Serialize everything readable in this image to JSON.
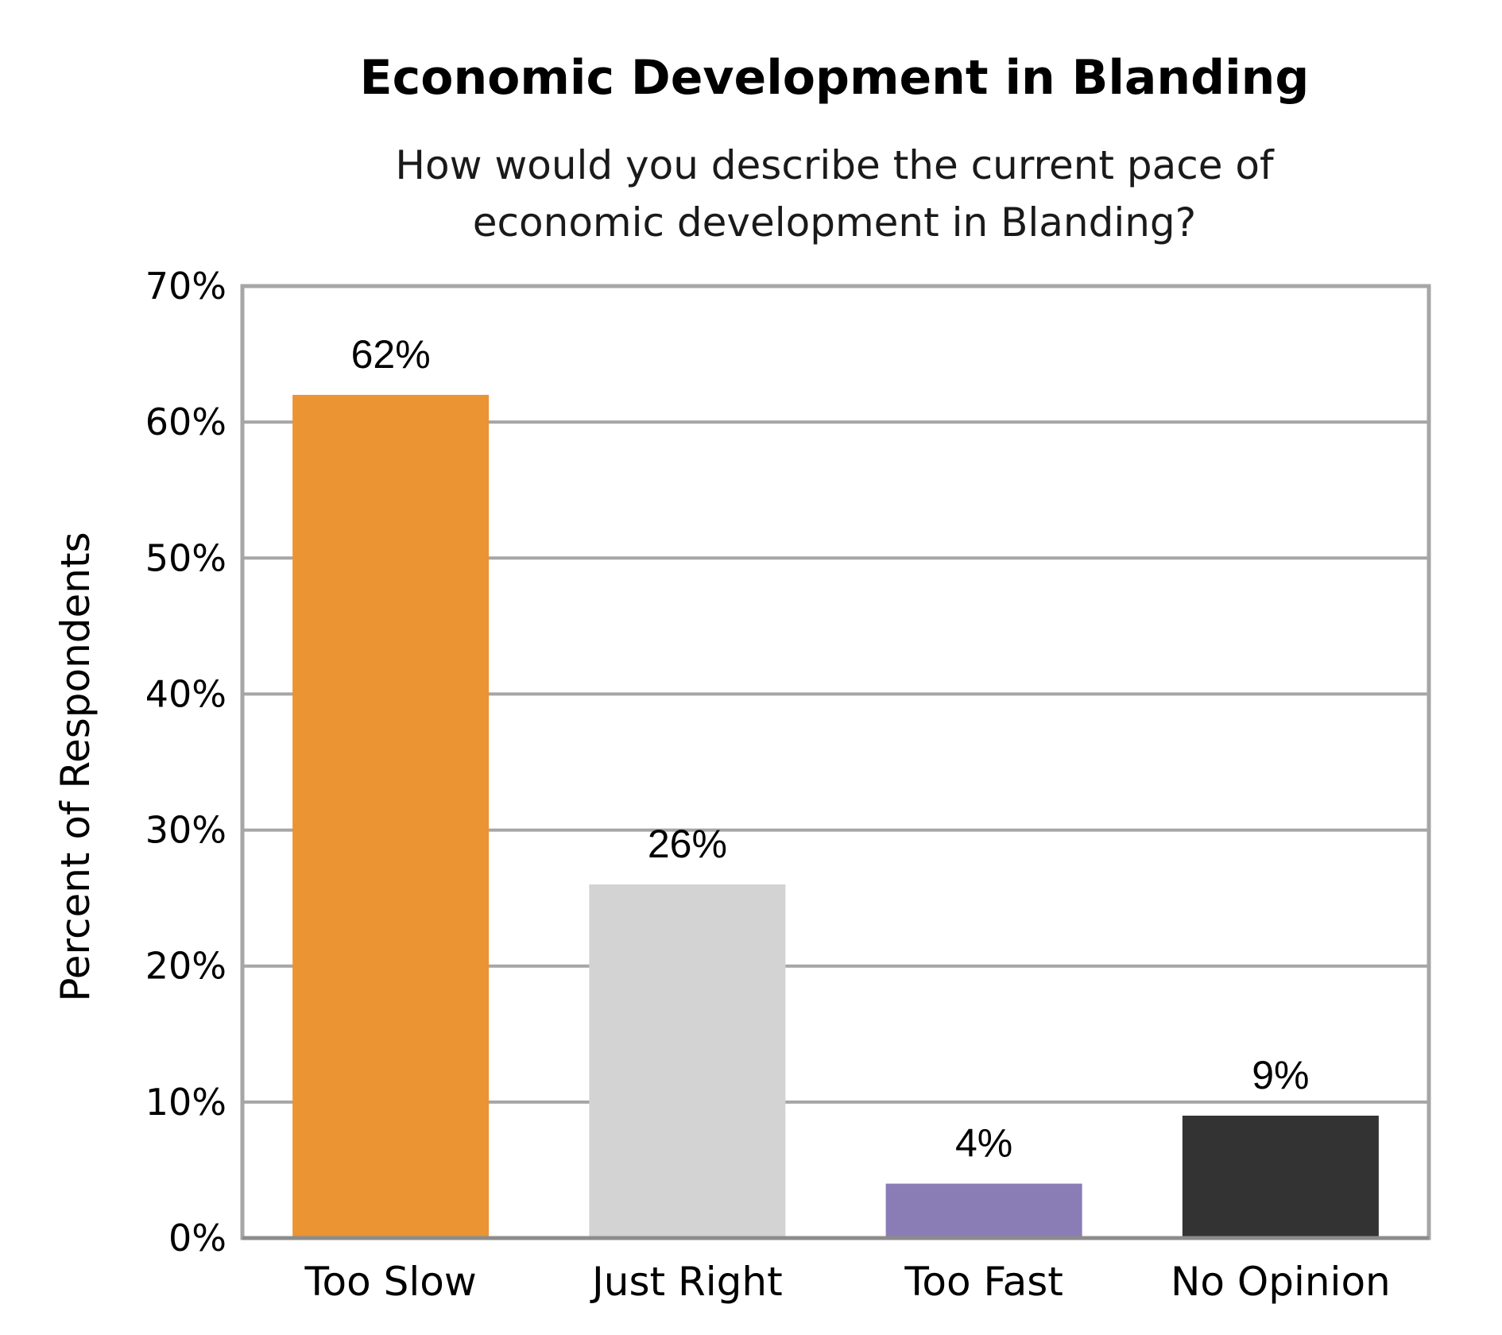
{
  "chart_data": {
    "type": "bar",
    "title": "Economic Development in Blanding",
    "subtitle": "How would you describe the current pace of economic development in Blanding?",
    "subtitle_lines": [
      "How would you describe the current pace of",
      "economic development in Blanding?"
    ],
    "xlabel": "",
    "ylabel": "Percent of Respondents",
    "categories": [
      "Too Slow",
      "Just Right",
      "Too Fast",
      "No Opinion"
    ],
    "values": [
      62,
      26,
      4,
      9
    ],
    "data_labels": [
      "62%",
      "26%",
      "4%",
      "9%"
    ],
    "colors": [
      "#EA9434",
      "#D3D3D3",
      "#8A7CB5",
      "#333333"
    ],
    "ylim": [
      0,
      70
    ],
    "yticks": [
      0,
      10,
      20,
      30,
      40,
      50,
      60,
      70
    ],
    "ytick_labels": [
      "0%",
      "10%",
      "20%",
      "30%",
      "40%",
      "50%",
      "60%",
      "70%"
    ],
    "grid": true,
    "legend": "none"
  }
}
